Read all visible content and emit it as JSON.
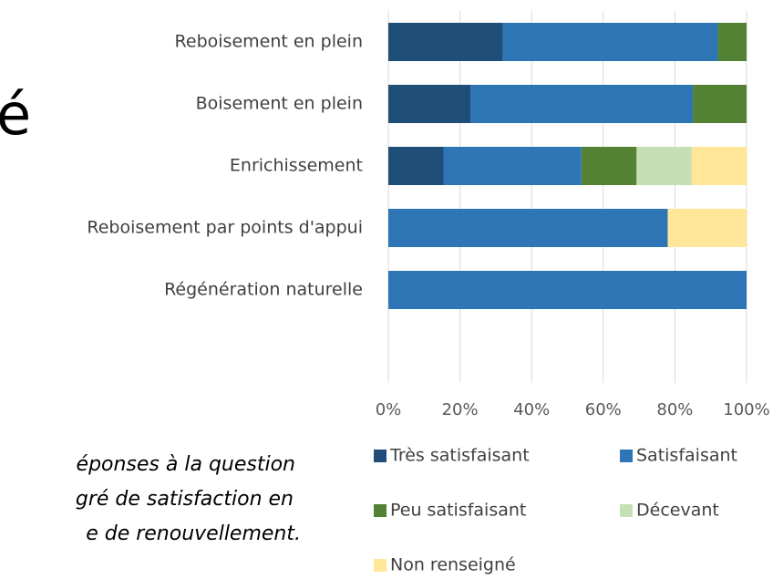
{
  "side_text": {
    "heading": "é",
    "caption": [
      "éponses à la question",
      "gré de satisfaction en",
      "e de renouvellement."
    ]
  },
  "chart_data": {
    "type": "stacked_barh",
    "categories": [
      "Reboisement en plein",
      "Boisement en plein",
      "Enrichissement",
      "Reboisement par points d'appui",
      "Régénération naturelle",
      null
    ],
    "series": [
      {
        "name": "Très satisfaisant",
        "color": "#1f4e79",
        "values": [
          32,
          23,
          15.4,
          0,
          0,
          null
        ]
      },
      {
        "name": "Satisfaisant",
        "color": "#2e75b6",
        "values": [
          60,
          62,
          38.5,
          78,
          100,
          null
        ]
      },
      {
        "name": "Peu satisfaisant",
        "color": "#548235",
        "values": [
          8,
          15,
          15.4,
          0,
          0,
          null
        ]
      },
      {
        "name": "Décevant",
        "color": "#c5e0b4",
        "values": [
          0,
          0,
          15.4,
          0,
          0,
          null
        ]
      },
      {
        "name": "Non renseigné",
        "color": "#ffe699",
        "values": [
          0,
          0,
          15.4,
          22,
          0,
          null
        ]
      }
    ],
    "xlim": [
      0,
      100
    ],
    "xticks": [
      {
        "value": 0,
        "label": "0%"
      },
      {
        "value": 20,
        "label": "20%"
      },
      {
        "value": 40,
        "label": "40%"
      },
      {
        "value": 60,
        "label": "60%"
      },
      {
        "value": 80,
        "label": "80%"
      },
      {
        "value": 100,
        "label": "100%"
      }
    ],
    "grid": true
  }
}
